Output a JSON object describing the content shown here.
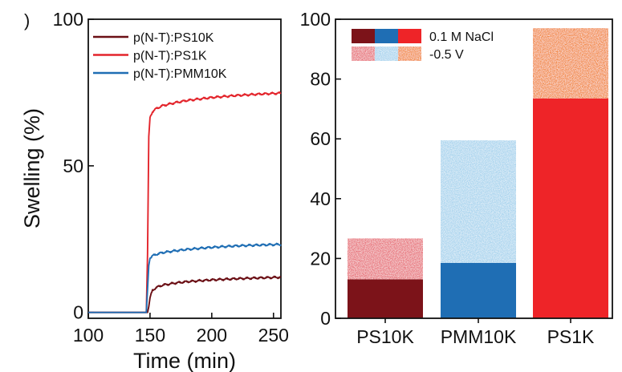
{
  "panel_label": ")",
  "chart_data": [
    {
      "type": "line",
      "xlabel": "Time (min)",
      "ylabel": "Swelling (%)",
      "xlim": [
        100,
        256
      ],
      "ylim": [
        -2,
        100
      ],
      "xticks": [
        "100",
        "150",
        "200",
        "250"
      ],
      "yticks": [
        "0",
        "50",
        "100"
      ],
      "legend_placement": "top-left",
      "grid": false,
      "series": [
        {
          "name": "p(N-T):PS10K",
          "color": "#6b0f15",
          "x": [
            100,
            148,
            149,
            150,
            152,
            155,
            160,
            170,
            180,
            200,
            220,
            240,
            256
          ],
          "y": [
            0,
            0,
            2,
            5,
            7.5,
            8.5,
            9.3,
            10.0,
            10.5,
            11.1,
            11.5,
            11.8,
            12.0
          ]
        },
        {
          "name": "p(N-T):PS1K",
          "color": "#e3242b",
          "x": [
            100,
            147,
            148,
            149,
            150,
            152,
            155,
            160,
            170,
            180,
            200,
            220,
            240,
            256
          ],
          "y": [
            0,
            0,
            20,
            60,
            66.5,
            68.5,
            69.5,
            70.5,
            71.5,
            72.3,
            73.3,
            74.0,
            74.5,
            74.8
          ]
        },
        {
          "name": "p(N-T):PMM10K",
          "color": "#1f6eb4",
          "x": [
            100,
            147,
            148,
            149,
            150,
            152,
            155,
            160,
            170,
            180,
            200,
            220,
            240,
            256
          ],
          "y": [
            0,
            0,
            8,
            16,
            18.5,
            19.3,
            19.8,
            20.4,
            21.0,
            21.5,
            22.2,
            22.7,
            23.0,
            23.2
          ]
        }
      ]
    },
    {
      "type": "bar",
      "stacked": true,
      "categories": [
        "PS10K",
        "PMM10K",
        "PS1K"
      ],
      "ylim": [
        0,
        100
      ],
      "yticks": [
        "0",
        "20",
        "40",
        "60",
        "80",
        "100"
      ],
      "legend_placement": "top-left",
      "grid": false,
      "series": [
        {
          "name": "0.1 M NaCl",
          "values": [
            13,
            18.5,
            73.5
          ],
          "colors": [
            "#7c1319",
            "#1f6eb4",
            "#ee2428"
          ]
        },
        {
          "name": "-0.5 V",
          "values": [
            13.7,
            41,
            23.5
          ],
          "colors": [
            "#e8727a",
            "#a9d4ee",
            "#f28943"
          ]
        }
      ]
    }
  ]
}
